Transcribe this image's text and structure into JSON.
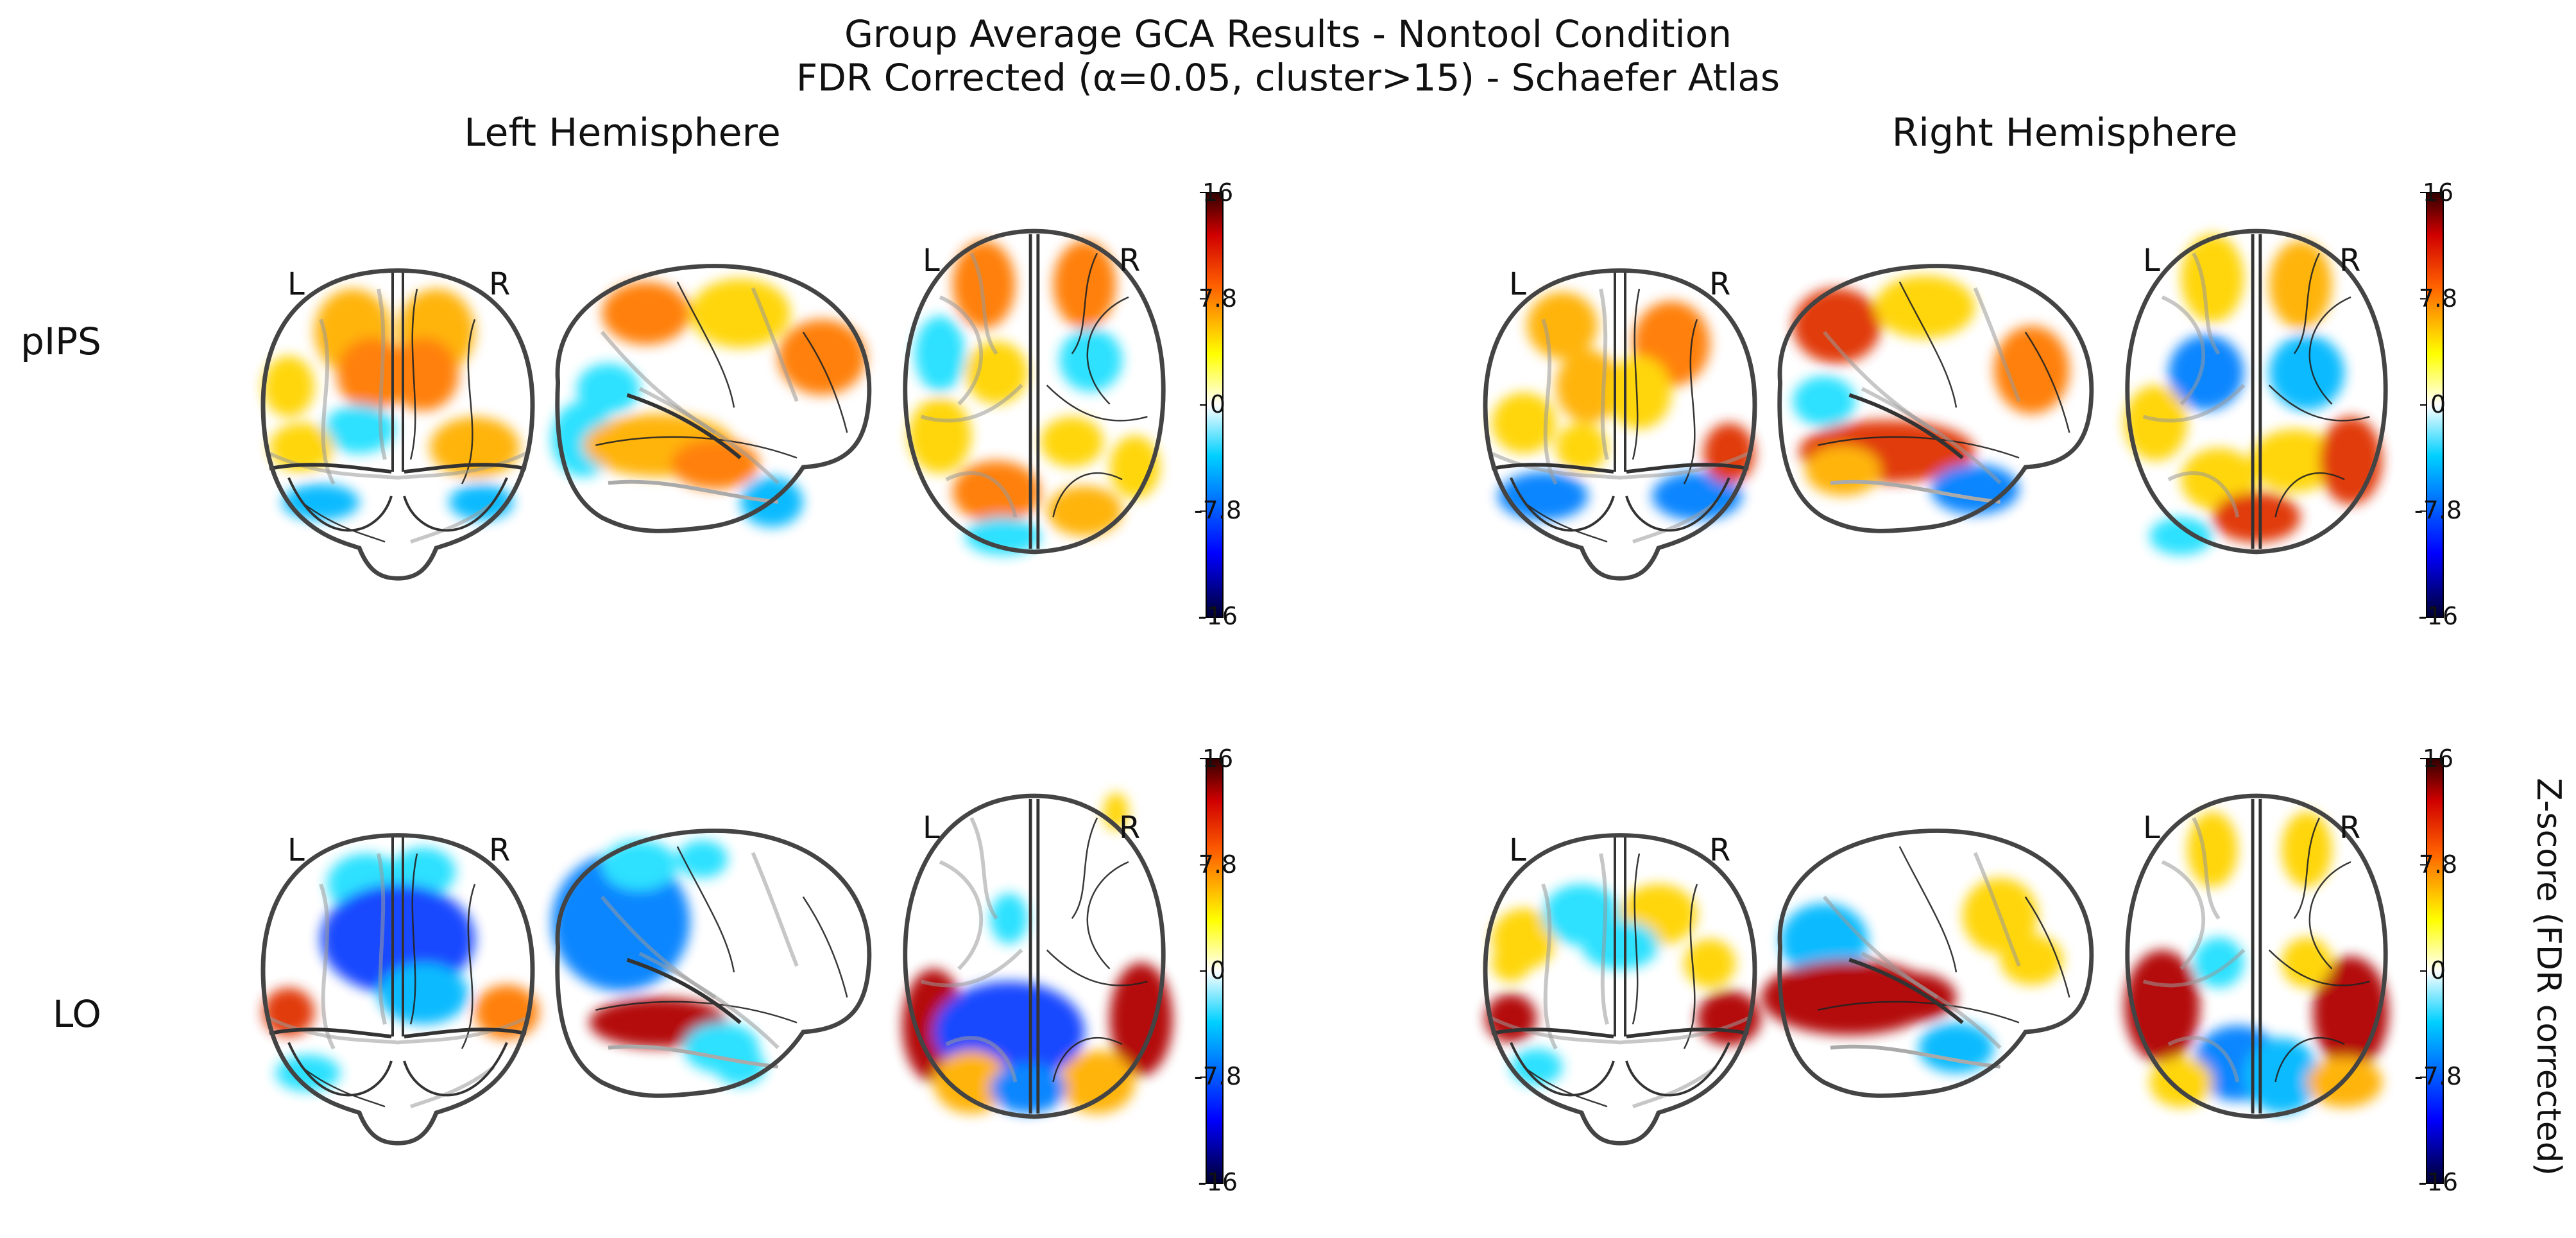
{
  "title_line1": "Group Average GCA Results - Nontool Condition",
  "title_line2": "FDR Corrected (α=0.05, cluster>15) - Schaefer Atlas",
  "chart_data": {
    "type": "heatmap",
    "columns": [
      "Left Hemisphere",
      "Right Hemisphere"
    ],
    "rows": [
      "pIPS",
      "LO"
    ],
    "views": [
      "coronal",
      "sagittal",
      "axial"
    ],
    "orientation_labels": {
      "left": "L",
      "right": "R"
    },
    "colorbar": {
      "label": "Z-score (FDR corrected)",
      "min": -16,
      "max": 16,
      "ticks": [
        "16",
        "7.8",
        "0",
        "-7.8",
        "-16"
      ],
      "colormap": "cold_hot",
      "stops": [
        "#000030",
        "#0000ff",
        "#00c8ff",
        "#ffffff",
        "#ffff00",
        "#ff6000",
        "#d00000",
        "#300000"
      ]
    }
  }
}
